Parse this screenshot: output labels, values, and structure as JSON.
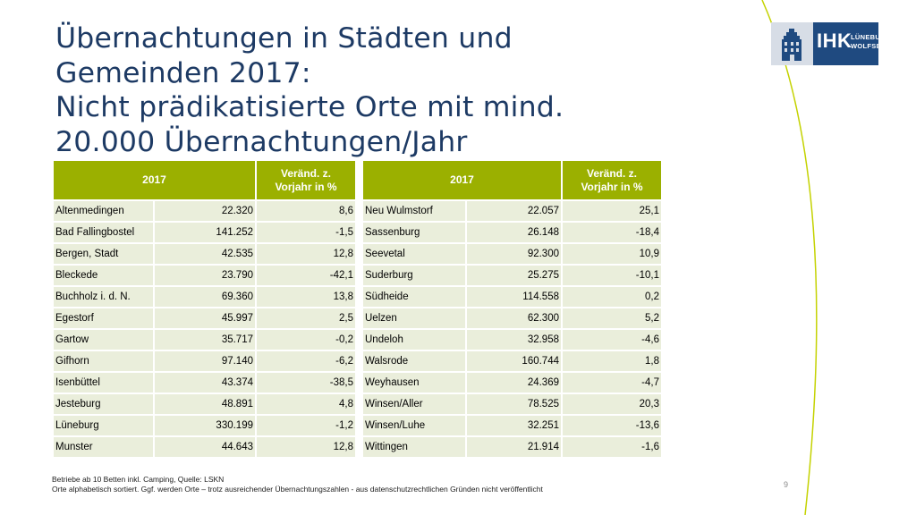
{
  "title_lines": [
    "Übernachtungen in Städten und",
    "Gemeinden 2017:",
    "Nicht prädikatisierte Orte mit mind.",
    "20.000 Übernachtungen/Jahr"
  ],
  "logo": {
    "abbr": "IHK",
    "line1": "LÜNEBURG",
    "line2": "WOLFSBURG",
    "brand_color": "#1f4a80"
  },
  "accent_color": "#9bb000",
  "tables": [
    {
      "header_year": "2017",
      "header_change": [
        "Veränd. z.",
        "Vorjahr in %"
      ],
      "rows": [
        {
          "place": "Altenmedingen",
          "nights": "22.320",
          "change": "8,6"
        },
        {
          "place": "Bad Fallingbostel",
          "nights": "141.252",
          "change": "-1,5"
        },
        {
          "place": "Bergen, Stadt",
          "nights": "42.535",
          "change": "12,8"
        },
        {
          "place": "Bleckede",
          "nights": "23.790",
          "change": "-42,1"
        },
        {
          "place": "Buchholz i. d. N.",
          "nights": "69.360",
          "change": "13,8"
        },
        {
          "place": "Egestorf",
          "nights": "45.997",
          "change": "2,5"
        },
        {
          "place": "Gartow",
          "nights": "35.717",
          "change": "-0,2"
        },
        {
          "place": "Gifhorn",
          "nights": "97.140",
          "change": "-6,2"
        },
        {
          "place": "Isenbüttel",
          "nights": "43.374",
          "change": "-38,5"
        },
        {
          "place": "Jesteburg",
          "nights": "48.891",
          "change": "4,8"
        },
        {
          "place": "Lüneburg",
          "nights": "330.199",
          "change": "-1,2"
        },
        {
          "place": "Munster",
          "nights": "44.643",
          "change": "12,8"
        }
      ]
    },
    {
      "header_year": "2017",
      "header_change": [
        "Veränd. z.",
        "Vorjahr in %"
      ],
      "rows": [
        {
          "place": "Neu Wulmstorf",
          "nights": "22.057",
          "change": "25,1"
        },
        {
          "place": "Sassenburg",
          "nights": "26.148",
          "change": "-18,4"
        },
        {
          "place": "Seevetal",
          "nights": "92.300",
          "change": "10,9"
        },
        {
          "place": "Suderburg",
          "nights": "25.275",
          "change": "-10,1"
        },
        {
          "place": "Südheide",
          "nights": "114.558",
          "change": "0,2"
        },
        {
          "place": "Uelzen",
          "nights": "62.300",
          "change": "5,2"
        },
        {
          "place": "Undeloh",
          "nights": "32.958",
          "change": "-4,6"
        },
        {
          "place": "Walsrode",
          "nights": "160.744",
          "change": "1,8"
        },
        {
          "place": "Weyhausen",
          "nights": "24.369",
          "change": "-4,7"
        },
        {
          "place": "Winsen/Aller",
          "nights": "78.525",
          "change": "20,3"
        },
        {
          "place": "Winsen/Luhe",
          "nights": "32.251",
          "change": "-13,6"
        },
        {
          "place": "Wittingen",
          "nights": "21.914",
          "change": "-1,6"
        }
      ]
    }
  ],
  "footnote": [
    "Betriebe ab 10 Betten inkl. Camping, Quelle: LSKN",
    "Orte alphabetisch sortiert. Ggf. werden Orte – trotz ausreichender Übernachtungszahlen - aus datenschutzrechtlichen Gründen nicht veröffentlicht"
  ],
  "page_number": "9"
}
